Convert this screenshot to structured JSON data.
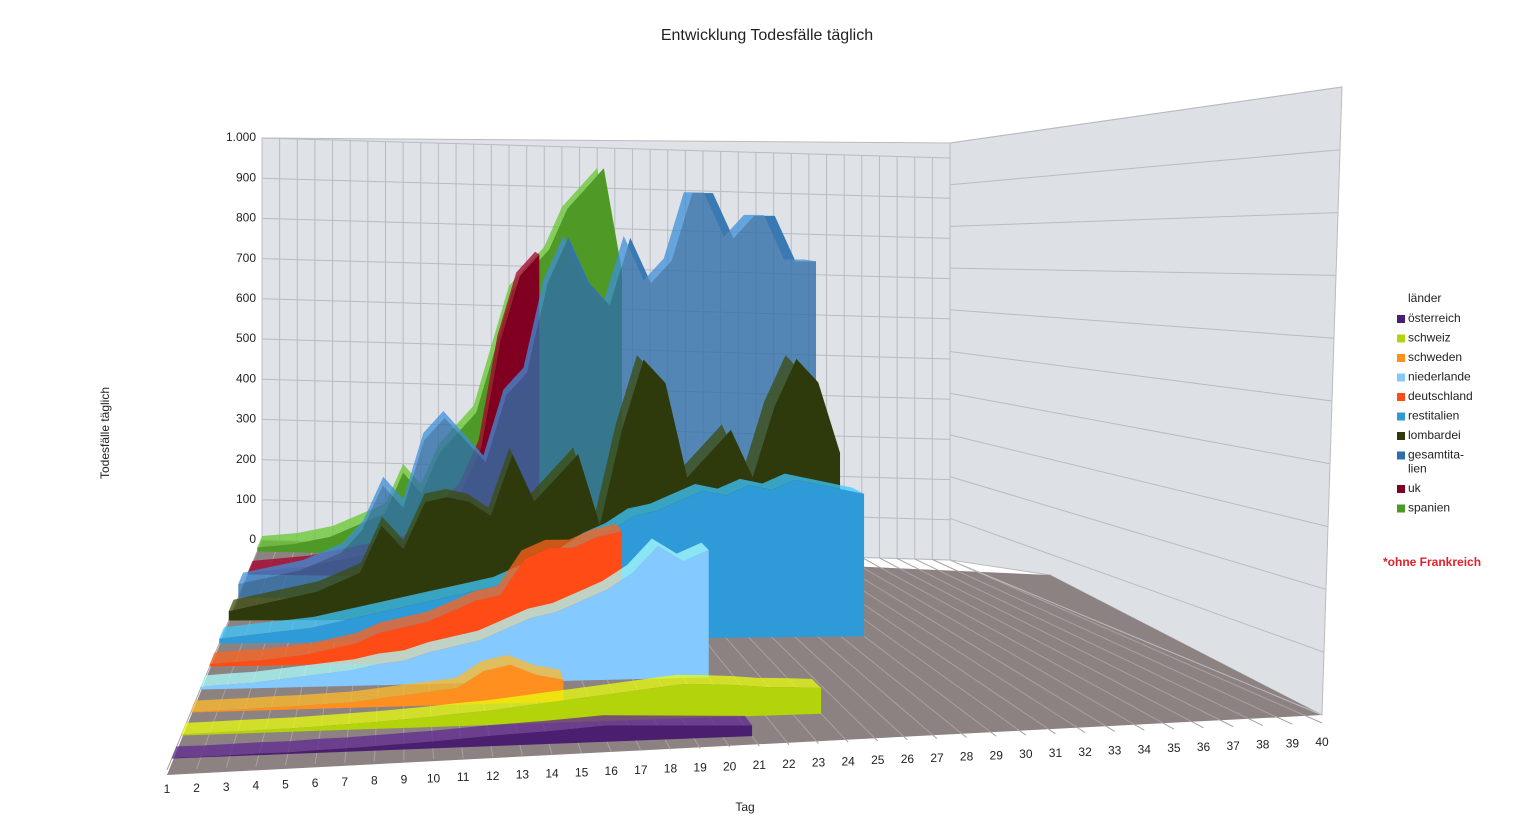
{
  "chart_data": {
    "type": "area3d",
    "title": "Entwicklung Todesfälle täglich",
    "y_label": "Todesfälle täglich",
    "x_label": "Tag",
    "legend_title": "länder",
    "annotation": "*ohne Frankreich",
    "categories": [
      1,
      2,
      3,
      4,
      5,
      6,
      7,
      8,
      9,
      10,
      11,
      12,
      13,
      14,
      15,
      16,
      17,
      18,
      19,
      20,
      21,
      22,
      23,
      24,
      25,
      26,
      27,
      28,
      29,
      30,
      31,
      32,
      33,
      34,
      35,
      36,
      37,
      38,
      39,
      40
    ],
    "ylim": [
      0,
      1000
    ],
    "yticks": [
      0,
      100,
      200,
      300,
      400,
      500,
      600,
      700,
      800,
      900,
      {
        "value": 1000,
        "label": "1.000"
      }
    ],
    "grid": true,
    "legend": "right",
    "series": [
      {
        "name": "österreich",
        "color": "#4b1f70",
        "values": [
          1,
          1,
          2,
          3,
          3,
          5,
          6,
          8,
          10,
          12,
          15,
          18,
          20,
          22,
          25,
          28,
          26,
          24,
          22,
          20,
          18,
          null,
          null,
          null,
          null,
          null,
          null,
          null,
          null,
          null,
          null,
          null,
          null,
          null,
          null,
          null,
          null,
          null,
          null,
          null
        ]
      },
      {
        "name": "schweiz",
        "color": "#b3d30a",
        "values": [
          2,
          3,
          4,
          5,
          6,
          8,
          10,
          12,
          15,
          18,
          22,
          25,
          30,
          35,
          40,
          45,
          50,
          55,
          60,
          58,
          55,
          50,
          48,
          45,
          null,
          null,
          null,
          null,
          null,
          null,
          null,
          null,
          null,
          null,
          null,
          null,
          null,
          null,
          null,
          null
        ]
      },
      {
        "name": "schweden",
        "color": "#ff8f1f",
        "values": [
          1,
          2,
          3,
          5,
          6,
          8,
          10,
          15,
          20,
          25,
          30,
          60,
          70,
          50,
          40,
          null,
          null,
          null,
          null,
          null,
          null,
          null,
          null,
          null,
          null,
          null,
          null,
          null,
          null,
          null,
          null,
          null,
          null,
          null,
          null,
          null,
          null,
          null,
          null,
          null
        ]
      },
      {
        "name": "niederlande",
        "color": "#84c9ff",
        "values": [
          5,
          8,
          10,
          15,
          20,
          25,
          30,
          40,
          45,
          60,
          70,
          80,
          100,
          120,
          130,
          150,
          170,
          200,
          250,
          220,
          240,
          null,
          null,
          null,
          null,
          null,
          null,
          null,
          null,
          null,
          null,
          null,
          null,
          null,
          null,
          null,
          null,
          null,
          null,
          null
        ]
      },
      {
        "name": "deutschland",
        "color": "#ff4b16",
        "values": [
          5,
          8,
          10,
          15,
          20,
          30,
          40,
          60,
          70,
          80,
          100,
          120,
          130,
          200,
          220,
          220,
          240,
          250,
          null,
          null,
          null,
          null,
          null,
          null,
          null,
          null,
          null,
          null,
          null,
          null,
          null,
          null,
          null,
          null,
          null,
          null,
          null,
          null,
          null,
          null
        ]
      },
      {
        "name": "restitalien",
        "color": "#2f9ad8",
        "values": [
          10,
          15,
          20,
          25,
          30,
          40,
          50,
          60,
          70,
          80,
          90,
          100,
          110,
          130,
          150,
          170,
          200,
          220,
          250,
          260,
          280,
          300,
          290,
          310,
          300,
          320,
          310,
          300,
          290,
          null,
          null,
          null,
          null,
          null,
          null,
          null,
          null,
          null,
          null,
          null
        ]
      },
      {
        "name": "lombardei",
        "color": "#2e3a0b",
        "values": [
          20,
          30,
          40,
          50,
          60,
          80,
          100,
          200,
          150,
          250,
          260,
          250,
          220,
          350,
          250,
          300,
          350,
          200,
          400,
          550,
          500,
          300,
          350,
          400,
          300,
          450,
          550,
          500,
          350,
          null,
          null,
          null,
          null,
          null,
          null,
          null,
          null,
          null,
          null,
          null
        ]
      },
      {
        "name": "gesamtita-\nlien",
        "color": "#2f6ea8",
        "values": [
          30,
          40,
          50,
          60,
          80,
          100,
          150,
          250,
          200,
          350,
          400,
          350,
          300,
          450,
          500,
          700,
          800,
          700,
          650,
          800,
          700,
          750,
          900,
          900,
          800,
          850,
          850,
          750,
          750,
          null,
          null,
          null,
          null,
          null,
          null,
          null,
          null,
          null,
          null,
          null
        ]
      },
      {
        "name": "uk",
        "color": "#810022",
        "values": [
          5,
          10,
          15,
          20,
          30,
          40,
          50,
          60,
          70,
          100,
          150,
          200,
          300,
          550,
          700,
          750,
          null,
          null,
          null,
          null,
          null,
          null,
          null,
          null,
          null,
          null,
          null,
          null,
          null,
          null,
          null,
          null,
          null,
          null,
          null,
          null,
          null,
          null,
          null,
          null
        ]
      },
      {
        "name": "spanien",
        "color": "#4f9a26",
        "values": [
          10,
          15,
          20,
          30,
          40,
          60,
          80,
          100,
          200,
          150,
          250,
          300,
          350,
          500,
          650,
          700,
          750,
          850,
          900,
          950,
          700,
          null,
          null,
          null,
          null,
          null,
          null,
          null,
          null,
          null,
          null,
          null,
          null,
          null,
          null,
          null,
          null,
          null,
          null,
          null
        ]
      }
    ]
  }
}
